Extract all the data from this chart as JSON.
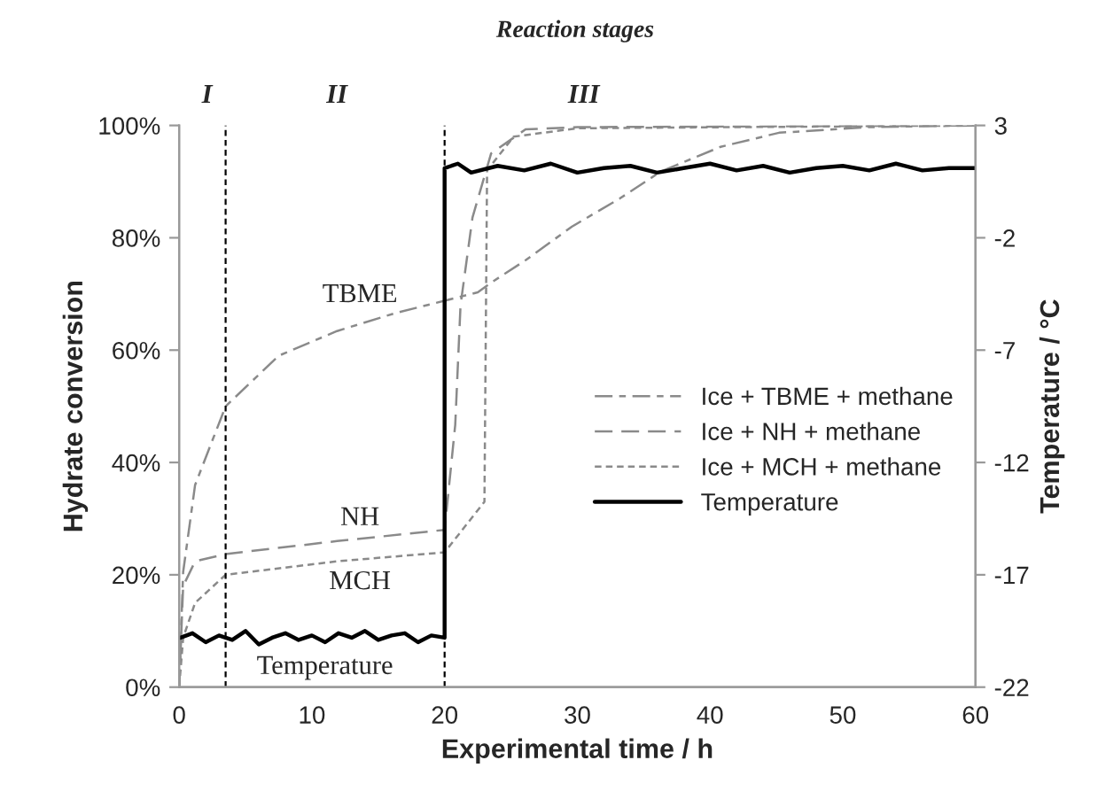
{
  "chart_data": {
    "type": "line",
    "title": "Reaction stages",
    "xlabel": "Experimental time / h",
    "ylabel": "Hydrate conversion",
    "y2label": "Temperature / °C",
    "series": [
      {
        "name": "Ice + TBME + methane",
        "color": "#8a8a8a",
        "line_style": "dashdot",
        "x": [
          0,
          0.3,
          1.2,
          3.5,
          7.5,
          11.9,
          16.3,
          20,
          22.5,
          23.5,
          26.1,
          29.6,
          33.2,
          36.3,
          40.8,
          45.2,
          51.9,
          60
        ],
        "values": [
          0,
          20.5,
          36,
          50,
          59,
          63.4,
          66.6,
          68.8,
          70.3,
          72,
          76,
          82,
          87,
          91.8,
          96.2,
          98.7,
          99.7,
          100
        ]
      },
      {
        "name": "Ice + NH + methane",
        "color": "#8a8a8a",
        "line_style": "dashed",
        "x": [
          0,
          0.3,
          1.2,
          3.5,
          11.9,
          20,
          20.8,
          21.2,
          22.1,
          23.5,
          26.1,
          30,
          60
        ],
        "values": [
          0,
          18,
          22.4,
          23.7,
          26,
          28,
          46.7,
          68,
          83.6,
          95,
          99.3,
          99.7,
          100
        ]
      },
      {
        "name": "Ice + MCH + methane",
        "color": "#8a8a8a",
        "line_style": "dotted",
        "x": [
          0,
          0.3,
          1.2,
          3.5,
          11.9,
          20,
          23,
          23.2,
          25.2,
          30,
          60
        ],
        "values": [
          0,
          8.8,
          15,
          20,
          22.4,
          24,
          33,
          92,
          98,
          99.5,
          100
        ]
      },
      {
        "name": "Temperature",
        "color": "#000000",
        "line_style": "solid",
        "axis": "y2",
        "x": [
          0.1,
          1,
          2,
          3,
          4,
          5,
          6,
          7,
          8,
          9,
          10,
          11,
          12,
          13,
          14,
          15,
          16,
          17,
          18,
          19,
          20,
          20,
          21,
          22,
          24,
          26,
          28,
          30,
          32,
          34,
          36,
          38,
          40,
          42,
          44,
          46,
          48,
          50,
          52,
          54,
          56,
          58,
          60
        ],
        "values": [
          -19.8,
          -19.6,
          -20.0,
          -19.7,
          -19.9,
          -19.5,
          -20.1,
          -19.8,
          -19.6,
          -19.9,
          -19.7,
          -20.0,
          -19.6,
          -19.8,
          -19.5,
          -19.9,
          -19.7,
          -19.6,
          -20.0,
          -19.7,
          -19.8,
          1.1,
          1.3,
          0.9,
          1.2,
          1.0,
          1.3,
          0.9,
          1.1,
          1.2,
          0.9,
          1.1,
          1.3,
          1.0,
          1.2,
          0.9,
          1.1,
          1.2,
          1.0,
          1.3,
          1.0,
          1.1,
          1.1
        ]
      }
    ],
    "xlim": [
      0,
      60
    ],
    "xticks": [
      0,
      10,
      20,
      30,
      40,
      50,
      60
    ],
    "ylim": [
      0,
      100
    ],
    "yticks": [
      {
        "value": 0,
        "label": "0%"
      },
      {
        "value": 20,
        "label": "20%"
      },
      {
        "value": 40,
        "label": "40%"
      },
      {
        "value": 60,
        "label": "60%"
      },
      {
        "value": 80,
        "label": "80%"
      },
      {
        "value": 100,
        "label": "100%"
      }
    ],
    "y2lim": [
      -22,
      3
    ],
    "y2ticks": [
      -22,
      -17,
      -12,
      -7,
      -2,
      3
    ],
    "ref_lines": [
      {
        "axis": "x",
        "value": 3.5,
        "line_style": "dotted",
        "color": "#000000"
      },
      {
        "axis": "x",
        "value": 20,
        "line_style": "dotted",
        "color": "#000000"
      }
    ],
    "annotations": [
      "I",
      "II",
      "III",
      "TBME",
      "NH",
      "MCH",
      "Temperature"
    ],
    "legend": "right",
    "grid": false
  }
}
